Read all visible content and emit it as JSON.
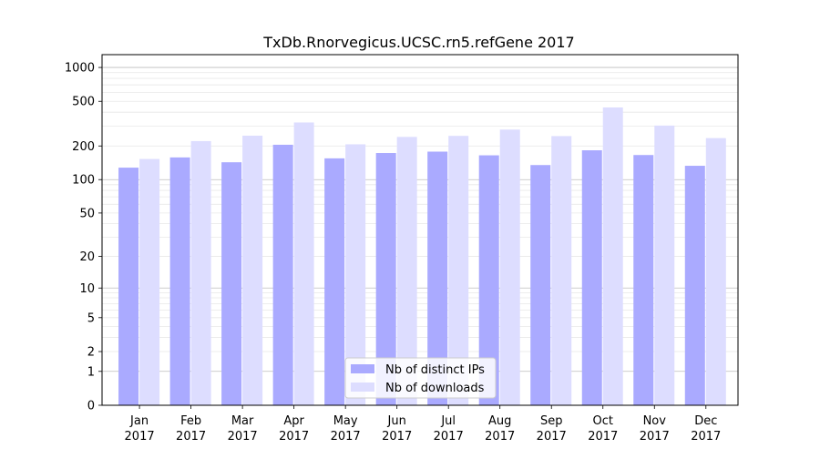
{
  "chart_data": {
    "type": "bar",
    "title": "TxDb.Rnorvegicus.UCSC.rn5.refGene 2017",
    "xlabel": "",
    "ylabel": "",
    "scale": "log(1+y)",
    "ylim": [
      0,
      1300
    ],
    "grid": true,
    "legend_position": "bottom-center",
    "categories": [
      [
        "Jan",
        "2017"
      ],
      [
        "Feb",
        "2017"
      ],
      [
        "Mar",
        "2017"
      ],
      [
        "Apr",
        "2017"
      ],
      [
        "May",
        "2017"
      ],
      [
        "Jun",
        "2017"
      ],
      [
        "Jul",
        "2017"
      ],
      [
        "Aug",
        "2017"
      ],
      [
        "Sep",
        "2017"
      ],
      [
        "Oct",
        "2017"
      ],
      [
        "Nov",
        "2017"
      ],
      [
        "Dec",
        "2017"
      ]
    ],
    "series": [
      {
        "name": "Nb of distinct IPs",
        "color": "#aaaaff",
        "values": [
          128,
          158,
          143,
          205,
          155,
          173,
          178,
          165,
          135,
          183,
          166,
          133
        ]
      },
      {
        "name": "Nb of downloads",
        "color": "#ddddff",
        "values": [
          153,
          221,
          247,
          324,
          207,
          241,
          246,
          280,
          245,
          441,
          304,
          235
        ]
      }
    ],
    "yticks": [
      {
        "value": 0,
        "label": "0"
      },
      {
        "value": 1,
        "label": "1"
      },
      {
        "value": 2,
        "label": "2"
      },
      {
        "value": 5,
        "label": "5"
      },
      {
        "value": 10,
        "label": "10"
      },
      {
        "value": 20,
        "label": "20"
      },
      {
        "value": 50,
        "label": "50"
      },
      {
        "value": 100,
        "label": "100"
      },
      {
        "value": 200,
        "label": "200"
      },
      {
        "value": 500,
        "label": "500"
      },
      {
        "value": 1000,
        "label": "1000"
      }
    ]
  }
}
